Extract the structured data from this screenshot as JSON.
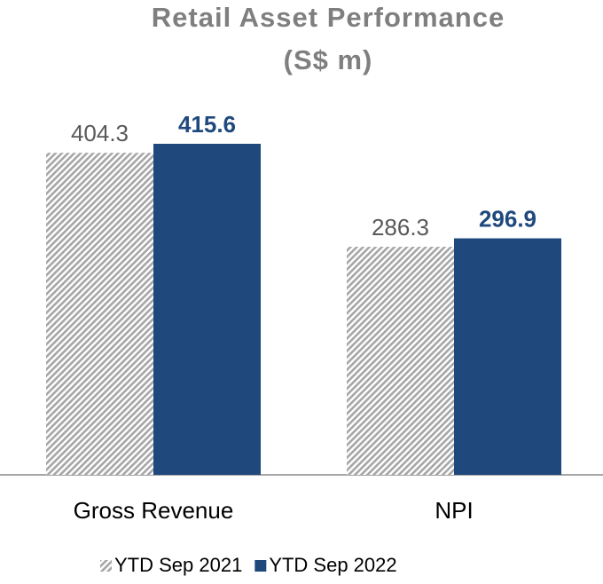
{
  "chart_data": {
    "type": "bar",
    "title": "Retail Asset Performance",
    "subtitle": "(S$ m)",
    "categories": [
      "Gross Revenue",
      "NPI"
    ],
    "series": [
      {
        "name": "YTD Sep 2021",
        "color": "#a6a6a6",
        "hatch": true,
        "values": [
          404.3,
          286.3
        ]
      },
      {
        "name": "YTD Sep 2022",
        "color": "#1f497d",
        "hatch": false,
        "values": [
          415.6,
          296.9
        ]
      }
    ],
    "legend": "bottom"
  }
}
